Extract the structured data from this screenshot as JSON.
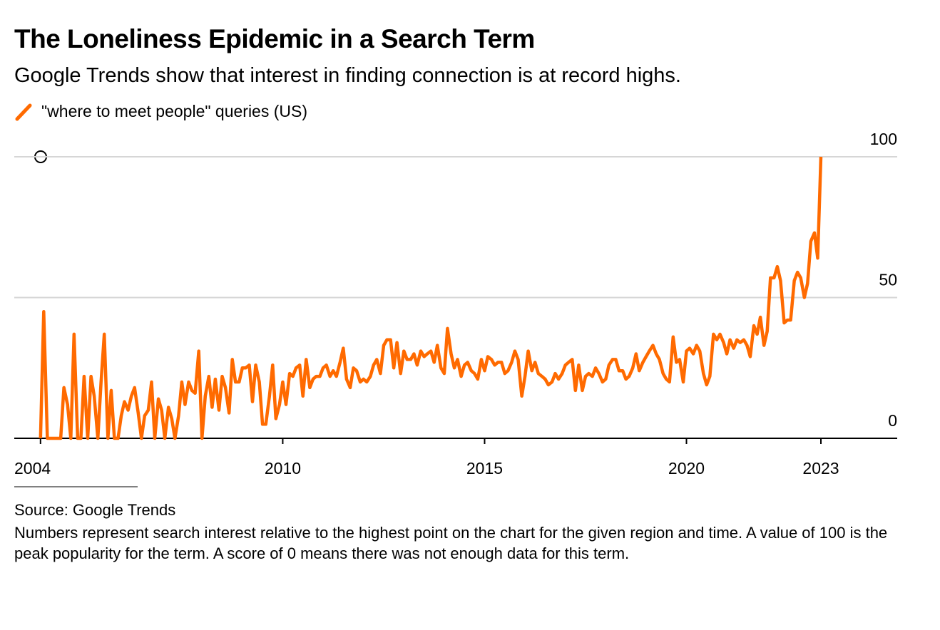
{
  "chart_data": {
    "type": "line",
    "title": "The Loneliness Epidemic in a Search Term",
    "subtitle": "Google Trends show that interest in finding connection is at record highs.",
    "source": "Source: Google Trends",
    "note": "Numbers represent search interest relative to the highest point on the chart for the given region and time. A value of 100 is the peak popularity for the term. A score of 0 means there was not enough data for this term.",
    "x": [
      2004,
      2004.08,
      2004.17,
      2004.25,
      2004.33,
      2004.42,
      2004.5,
      2004.58,
      2004.67,
      2004.75,
      2004.83,
      2004.92,
      2005,
      2005.08,
      2005.17,
      2005.25,
      2005.33,
      2005.42,
      2005.5,
      2005.58,
      2005.67,
      2005.75,
      2005.83,
      2005.92,
      2006,
      2006.08,
      2006.17,
      2006.25,
      2006.33,
      2006.42,
      2006.5,
      2006.58,
      2006.67,
      2006.75,
      2006.83,
      2006.92,
      2007,
      2007.08,
      2007.17,
      2007.25,
      2007.33,
      2007.42,
      2007.5,
      2007.58,
      2007.67,
      2007.75,
      2007.83,
      2007.92,
      2008,
      2008.08,
      2008.17,
      2008.25,
      2008.33,
      2008.42,
      2008.5,
      2008.58,
      2008.67,
      2008.75,
      2008.83,
      2008.92,
      2009,
      2009.08,
      2009.17,
      2009.25,
      2009.33,
      2009.42,
      2009.5,
      2009.58,
      2009.67,
      2009.75,
      2009.83,
      2009.92,
      2010,
      2010.08,
      2010.17,
      2010.25,
      2010.33,
      2010.42,
      2010.5,
      2010.58,
      2010.67,
      2010.75,
      2010.83,
      2010.92,
      2011,
      2011.08,
      2011.17,
      2011.25,
      2011.33,
      2011.42,
      2011.5,
      2011.58,
      2011.67,
      2011.75,
      2011.83,
      2011.92,
      2012,
      2012.08,
      2012.17,
      2012.25,
      2012.33,
      2012.42,
      2012.5,
      2012.58,
      2012.67,
      2012.75,
      2012.83,
      2012.92,
      2013,
      2013.08,
      2013.17,
      2013.25,
      2013.33,
      2013.42,
      2013.5,
      2013.58,
      2013.67,
      2013.75,
      2013.83,
      2013.92,
      2014,
      2014.08,
      2014.17,
      2014.25,
      2014.33,
      2014.42,
      2014.5,
      2014.58,
      2014.67,
      2014.75,
      2014.83,
      2014.92,
      2015,
      2015.08,
      2015.17,
      2015.25,
      2015.33,
      2015.42,
      2015.5,
      2015.58,
      2015.67,
      2015.75,
      2015.83,
      2015.92,
      2016,
      2016.08,
      2016.17,
      2016.25,
      2016.33,
      2016.42,
      2016.5,
      2016.58,
      2016.67,
      2016.75,
      2016.83,
      2016.92,
      2017,
      2017.08,
      2017.17,
      2017.25,
      2017.33,
      2017.42,
      2017.5,
      2017.58,
      2017.67,
      2017.75,
      2017.83,
      2017.92,
      2018,
      2018.08,
      2018.17,
      2018.25,
      2018.33,
      2018.42,
      2018.5,
      2018.58,
      2018.67,
      2018.75,
      2018.83,
      2018.92,
      2019,
      2019.08,
      2019.17,
      2019.25,
      2019.33,
      2019.42,
      2019.5,
      2019.58,
      2019.67,
      2019.75,
      2019.83,
      2019.92,
      2020,
      2020.08,
      2020.17,
      2020.25,
      2020.33,
      2020.42,
      2020.5,
      2020.58,
      2020.67,
      2020.75,
      2020.83,
      2020.92,
      2021,
      2021.08,
      2021.17,
      2021.25,
      2021.33,
      2021.42,
      2021.5,
      2021.58,
      2021.67,
      2021.75,
      2021.83,
      2021.92,
      2022,
      2022.08,
      2022.17,
      2022.25,
      2022.33,
      2022.42,
      2022.5,
      2022.58,
      2022.67,
      2022.75,
      2022.83,
      2022.92,
      2023,
      2023.08,
      2023.17,
      2023.25,
      2023.33
    ],
    "series": [
      {
        "name": "\"where to meet people\" queries (US)",
        "color": "#ff6a00",
        "values": [
          0,
          45,
          0,
          0,
          0,
          0,
          0,
          18,
          12,
          0,
          37,
          0,
          0,
          22,
          0,
          22,
          15,
          0,
          20,
          37,
          0,
          17,
          0,
          0,
          8,
          13,
          10,
          15,
          18,
          9,
          0,
          8,
          10,
          20,
          0,
          14,
          10,
          0,
          11,
          7,
          0,
          8,
          20,
          12,
          20,
          17,
          16,
          31,
          0,
          15,
          22,
          11,
          21,
          10,
          22,
          18,
          9,
          28,
          20,
          20,
          25,
          25,
          26,
          13,
          26,
          20,
          5,
          5,
          15,
          26,
          7,
          12,
          20,
          12,
          23,
          22,
          25,
          26,
          15,
          28,
          18,
          21,
          22,
          22,
          25,
          26,
          22,
          24,
          22,
          27,
          32,
          21,
          18,
          25,
          24,
          20,
          21,
          20,
          22,
          26,
          28,
          23,
          33,
          35,
          35,
          25,
          34,
          23,
          31,
          28,
          28,
          30,
          26,
          31,
          29,
          30,
          31,
          27,
          33,
          25,
          23,
          39,
          30,
          25,
          28,
          22,
          26,
          27,
          24,
          23,
          21,
          28,
          24,
          29,
          28,
          26,
          27,
          27,
          23,
          24,
          27,
          31,
          28,
          15,
          22,
          31,
          24,
          27,
          23,
          22,
          21,
          19,
          20,
          23,
          21,
          23,
          26,
          27,
          28,
          17,
          26,
          17,
          22,
          23,
          22,
          25,
          23,
          20,
          21,
          26,
          28,
          28,
          24,
          24,
          21,
          22,
          25,
          30,
          24,
          27,
          29,
          31,
          33,
          30,
          28,
          23,
          21,
          20,
          36,
          27,
          28,
          20,
          31,
          32,
          30,
          33,
          31,
          23,
          19,
          22,
          37,
          35,
          37,
          34,
          30,
          35,
          32,
          35,
          34,
          35,
          33,
          29,
          40,
          37,
          43,
          33,
          38,
          57,
          57,
          61,
          56,
          41,
          42,
          42,
          56,
          59,
          57,
          50,
          55,
          70,
          73,
          64,
          100
        ]
      }
    ],
    "xlim": [
      2003.35,
      2025.22
    ],
    "xticks": [
      2004,
      2010,
      2015,
      2020,
      {
        "value": 2023.33,
        "label": "2023"
      }
    ],
    "ylim": [
      0,
      100
    ],
    "yticks": [
      0,
      50,
      100
    ],
    "grid": true
  }
}
